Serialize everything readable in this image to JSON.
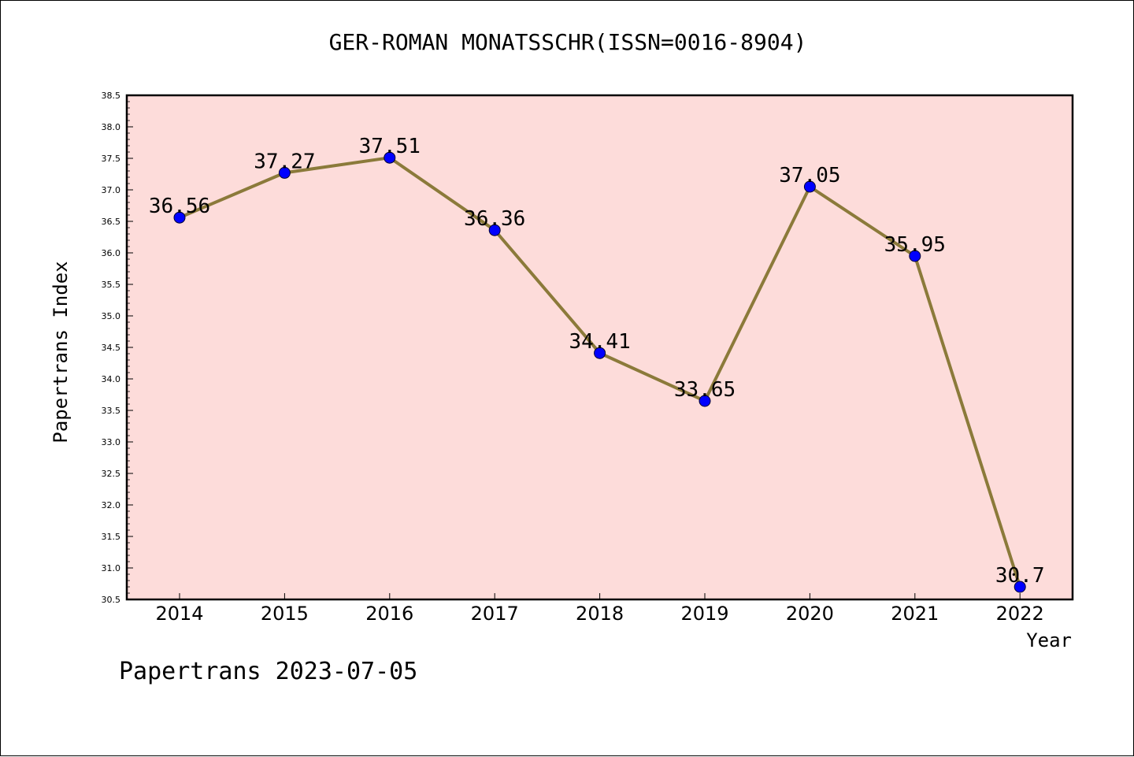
{
  "chart_data": {
    "type": "line",
    "title": "GER-ROMAN MONATSSCHR(ISSN=0016-8904)",
    "xlabel": "Year",
    "ylabel": "Papertrans Index",
    "categories": [
      "2014",
      "2015",
      "2016",
      "2017",
      "2018",
      "2019",
      "2020",
      "2021",
      "2022"
    ],
    "series": [
      {
        "values": [
          36.56,
          37.27,
          37.51,
          36.36,
          34.41,
          33.65,
          37.05,
          35.95,
          30.7
        ]
      }
    ],
    "data_labels": [
      "36.56",
      "37.27",
      "37.51",
      "36.36",
      "34.41",
      "33.65",
      "37.05",
      "35.95",
      "30.7"
    ],
    "ylim": [
      30.5,
      38.5
    ],
    "yticks": [
      "30.5",
      "31.0",
      "31.5",
      "32.0",
      "32.5",
      "33.0",
      "33.5",
      "34.0",
      "34.5",
      "35.0",
      "35.5",
      "36.0",
      "36.5",
      "37.0",
      "37.5",
      "38.0",
      "38.5"
    ],
    "grid": false,
    "colors": {
      "plot_background": "#fddcda",
      "line": "#8b7a3a",
      "marker": "#0000ff"
    }
  },
  "footer": {
    "text": "Papertrans 2023-07-05"
  }
}
